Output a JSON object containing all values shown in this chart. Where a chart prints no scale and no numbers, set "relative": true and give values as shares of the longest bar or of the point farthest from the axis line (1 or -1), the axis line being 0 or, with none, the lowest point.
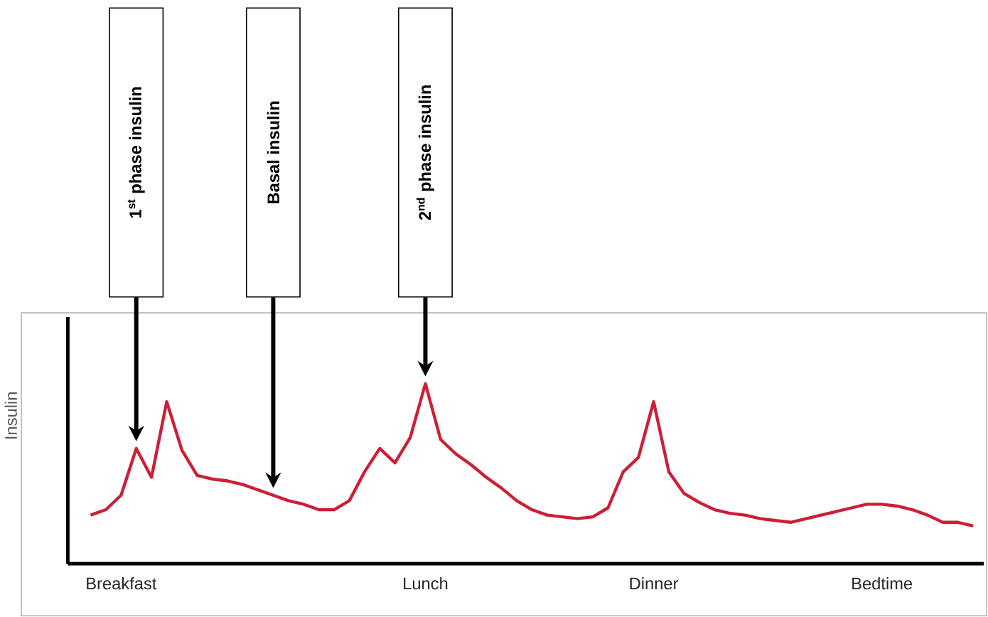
{
  "chart_data": {
    "type": "line",
    "relative": true,
    "ylabel": "Insulin",
    "color": "#cc1f36",
    "categories": [
      null,
      null,
      "Breakfast",
      null,
      null,
      null,
      null,
      null,
      null,
      null,
      null,
      null,
      null,
      null,
      null,
      null,
      null,
      null,
      null,
      null,
      null,
      null,
      "Lunch",
      null,
      null,
      null,
      null,
      null,
      null,
      null,
      null,
      null,
      null,
      null,
      null,
      null,
      null,
      "Dinner",
      null,
      null,
      null,
      null,
      null,
      null,
      null,
      null,
      null,
      null,
      null,
      null,
      null,
      null,
      "Bedtime",
      null,
      null,
      null,
      null,
      null,
      null
    ],
    "values": [
      0.27,
      0.3,
      0.38,
      0.64,
      0.48,
      0.9,
      0.63,
      0.49,
      0.47,
      0.46,
      0.44,
      0.41,
      0.38,
      0.35,
      0.33,
      0.3,
      0.3,
      0.35,
      0.51,
      0.64,
      0.56,
      0.7,
      1,
      0.69,
      0.61,
      0.55,
      0.48,
      0.42,
      0.35,
      0.3,
      0.27,
      0.26,
      0.25,
      0.26,
      0.31,
      0.51,
      0.59,
      0.9,
      0.51,
      0.39,
      0.34,
      0.3,
      0.28,
      0.27,
      0.25,
      0.24,
      0.23,
      0.25,
      0.27,
      0.29,
      0.31,
      0.33,
      0.33,
      0.32,
      0.3,
      0.27,
      0.23,
      0.23,
      0.21
    ],
    "annotations": [
      "1$^{st}$ phase insulin",
      "Basal insulin",
      "2$^{nd}$ phase insulin"
    ]
  }
}
